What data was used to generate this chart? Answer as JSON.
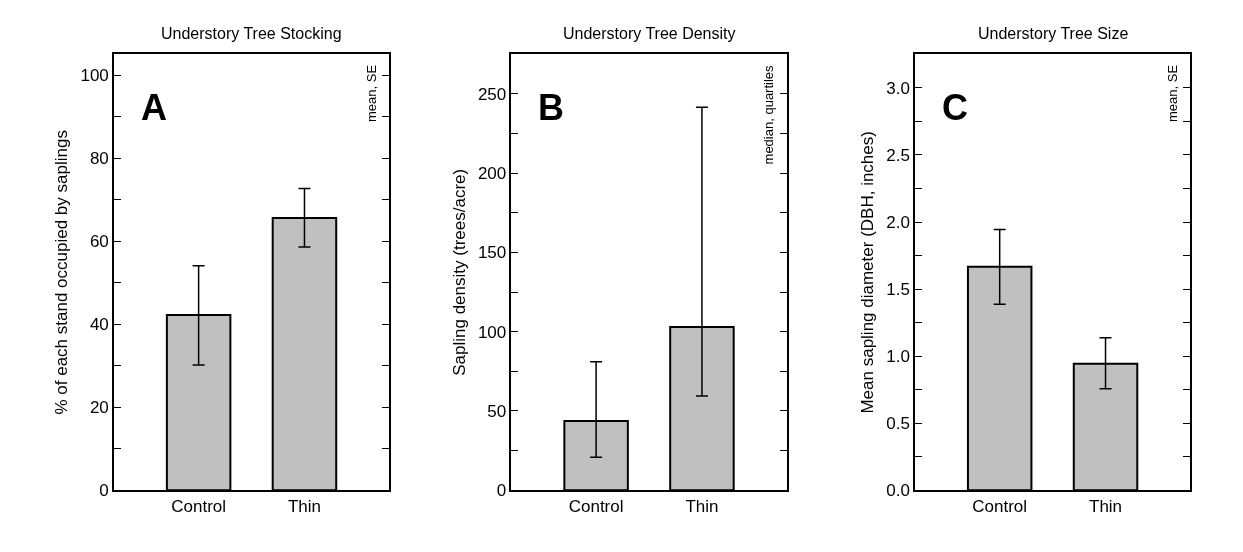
{
  "chart_data": [
    {
      "type": "bar",
      "title": "Understory Tree Stocking",
      "ylabel": "% of each stand occupied by saplings",
      "categories": [
        "Control",
        "Thin"
      ],
      "values": [
        42.2,
        65.6
      ],
      "errors": [
        [
          30.2,
          54.1
        ],
        [
          58.6,
          72.7
        ]
      ],
      "color": "#c0c0c0",
      "ylim": [
        0,
        105
      ],
      "yticks": [
        0,
        {
          "value": 10,
          "label": null
        },
        20,
        {
          "value": 30,
          "label": null
        },
        40,
        {
          "value": 50,
          "label": null
        },
        60,
        {
          "value": 70,
          "label": null
        },
        80,
        {
          "value": 90,
          "label": null
        },
        100
      ],
      "annotations": [
        "A",
        "mean, SE"
      ]
    },
    {
      "type": "bar",
      "title": "Understory Tree Density",
      "ylabel": "Sapling density (trees/acre)",
      "categories": [
        "Control",
        "Thin"
      ],
      "values": [
        43.7,
        103
      ],
      "errors": [
        [
          20.8,
          81
        ],
        [
          59.5,
          241.7
        ]
      ],
      "color": "#c0c0c0",
      "ylim": [
        0,
        275
      ],
      "yticks": [
        0,
        {
          "value": 25,
          "label": null
        },
        50,
        {
          "value": 75,
          "label": null
        },
        100,
        {
          "value": 125,
          "label": null
        },
        150,
        {
          "value": 175,
          "label": null
        },
        200,
        {
          "value": 225,
          "label": null
        },
        250
      ],
      "annotations": [
        "B",
        "median, quartiles"
      ]
    },
    {
      "type": "bar",
      "title": "Understory Tree Size",
      "ylabel": "Mean sapling diameter (DBH, inches)",
      "categories": [
        "Control",
        "Thin"
      ],
      "values": [
        1.667,
        0.944
      ],
      "errors": [
        [
          1.387,
          1.945
        ],
        [
          0.757,
          1.137
        ]
      ],
      "color": "#c0c0c0",
      "ylim": [
        0,
        3.25
      ],
      "yticks": [
        {
          "value": 0,
          "label": "0.0"
        },
        {
          "value": 0.25,
          "label": null
        },
        0.5,
        {
          "value": 0.75,
          "label": null
        },
        {
          "value": 1,
          "label": "1.0"
        },
        {
          "value": 1.25,
          "label": null
        },
        1.5,
        {
          "value": 1.75,
          "label": null
        },
        {
          "value": 2,
          "label": "2.0"
        },
        {
          "value": 2.25,
          "label": null
        },
        2.5,
        {
          "value": 2.75,
          "label": null
        },
        {
          "value": 3,
          "label": "3.0"
        }
      ],
      "annotations": [
        "C",
        "mean, SE"
      ]
    }
  ]
}
